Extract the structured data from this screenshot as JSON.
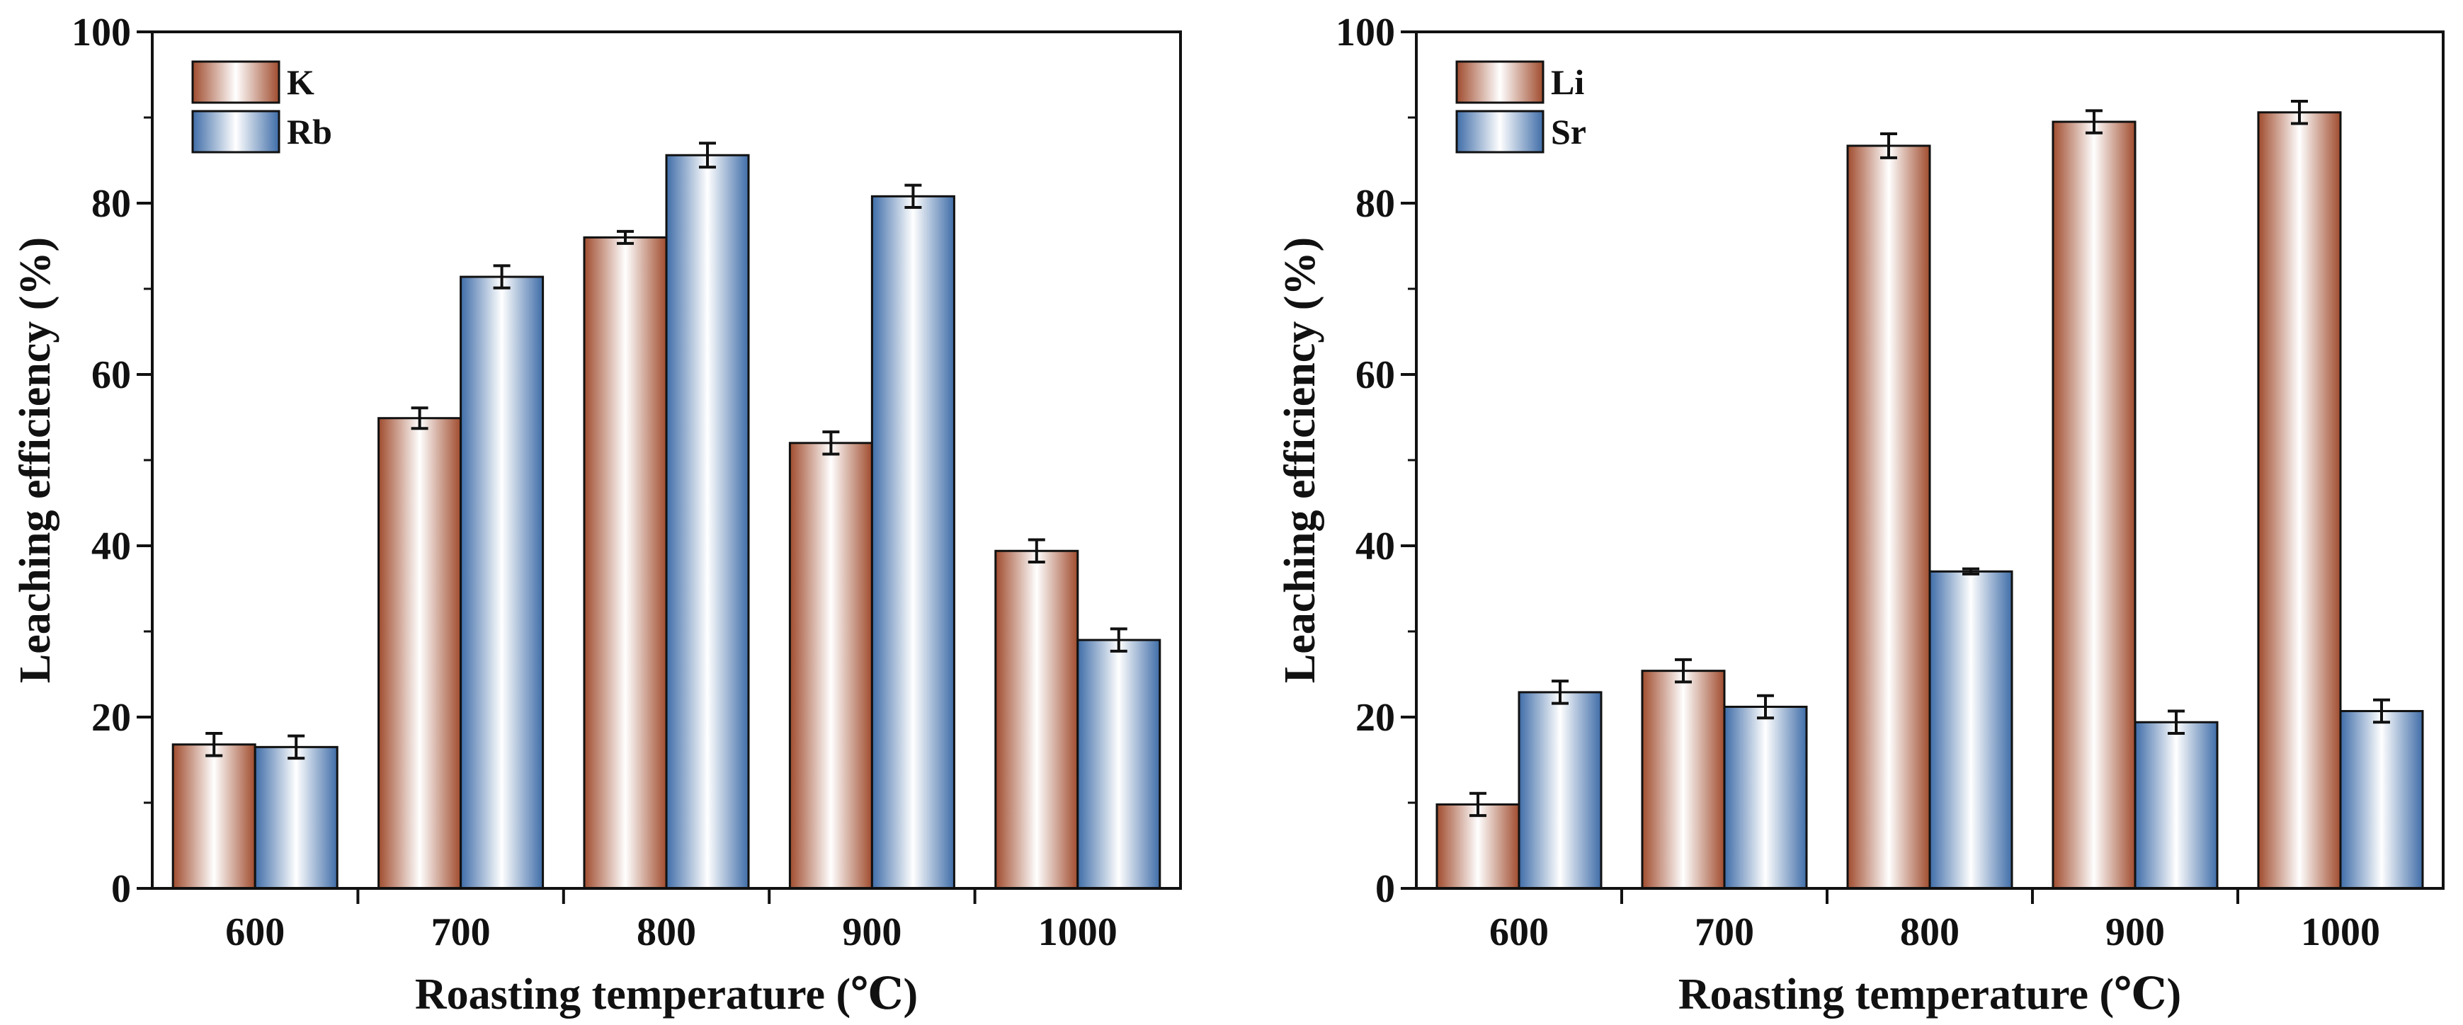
{
  "colors": {
    "series_a": "#a04c2e",
    "series_b": "#3f6da8",
    "axis": "#111111",
    "error_bar": "#111111"
  },
  "chart_data": [
    {
      "type": "bar",
      "title": "",
      "categories": [
        "600",
        "700",
        "800",
        "900",
        "1000"
      ],
      "xlabel": "Roasting temperature (℃)",
      "ylabel": "Leaching efficiency (%)",
      "ylim": [
        0,
        100
      ],
      "yticks": [
        "0",
        "20",
        "40",
        "60",
        "80",
        "100"
      ],
      "legend_position": "top-left",
      "grid": false,
      "series": [
        {
          "name": "K",
          "color_key": "series_a",
          "values": [
            16.8,
            54.9,
            76.0,
            52.0,
            39.4
          ],
          "errors": [
            1.3,
            1.2,
            0.7,
            1.3,
            1.3
          ]
        },
        {
          "name": "Rb",
          "color_key": "series_b",
          "values": [
            16.5,
            71.4,
            85.6,
            80.8,
            29.0
          ],
          "errors": [
            1.3,
            1.3,
            1.4,
            1.3,
            1.3
          ]
        }
      ]
    },
    {
      "type": "bar",
      "title": "",
      "categories": [
        "600",
        "700",
        "800",
        "900",
        "1000"
      ],
      "xlabel": "Roasting temperature (℃)",
      "ylabel": "Leaching efficiency (%)",
      "ylim": [
        0,
        100
      ],
      "yticks": [
        "0",
        "20",
        "40",
        "60",
        "80",
        "100"
      ],
      "legend_position": "top-left",
      "grid": false,
      "series": [
        {
          "name": "Li",
          "color_key": "series_a",
          "values": [
            9.8,
            25.4,
            86.7,
            89.5,
            90.6
          ],
          "errors": [
            1.3,
            1.3,
            1.4,
            1.3,
            1.3
          ]
        },
        {
          "name": "Sr",
          "color_key": "series_b",
          "values": [
            22.9,
            21.2,
            37.0,
            19.4,
            20.7
          ],
          "errors": [
            1.3,
            1.3,
            0.3,
            1.3,
            1.3
          ]
        }
      ]
    }
  ]
}
